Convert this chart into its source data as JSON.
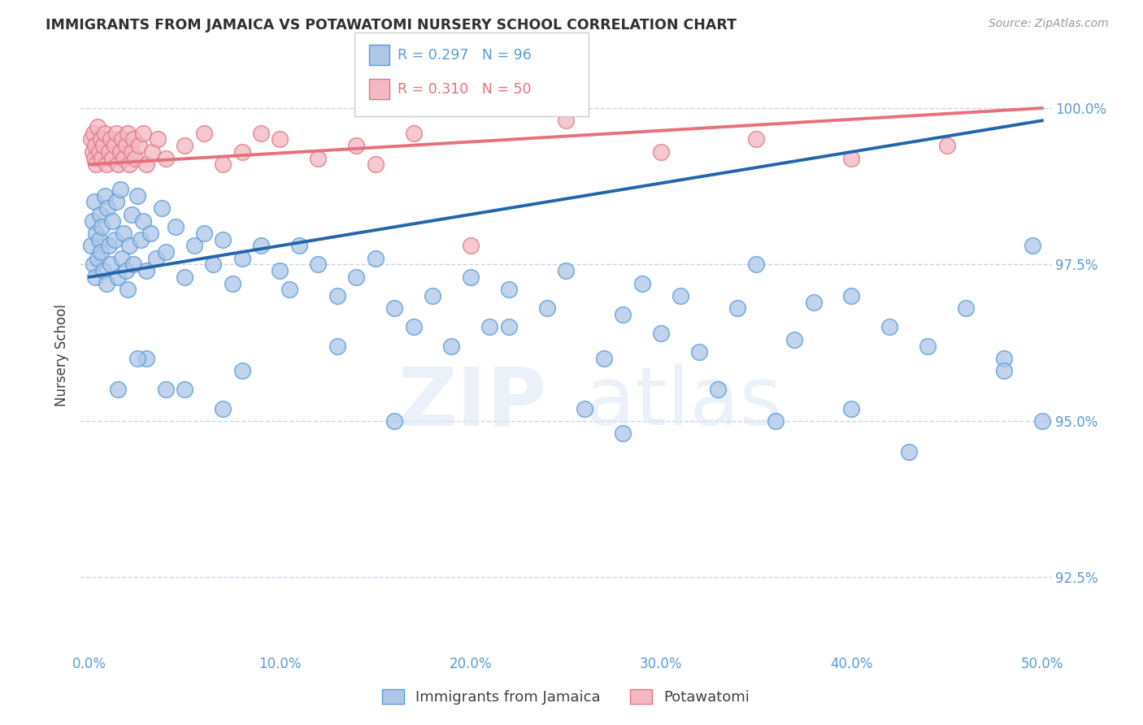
{
  "title": "IMMIGRANTS FROM JAMAICA VS POTAWATOMI NURSERY SCHOOL CORRELATION CHART",
  "source": "Source: ZipAtlas.com",
  "ylabel": "Nursery School",
  "xlim": [
    -0.5,
    50.5
  ],
  "ylim": [
    91.3,
    100.8
  ],
  "yticks": [
    92.5,
    95.0,
    97.5,
    100.0
  ],
  "xticks": [
    0.0,
    10.0,
    20.0,
    30.0,
    40.0,
    50.0
  ],
  "xticklabels": [
    "0.0%",
    "10.0%",
    "20.0%",
    "30.0%",
    "40.0%",
    "50.0%"
  ],
  "yticklabels": [
    "92.5%",
    "95.0%",
    "97.5%",
    "100.0%"
  ],
  "blue_R": 0.297,
  "blue_N": 96,
  "pink_R": 0.31,
  "pink_N": 50,
  "blue_color": "#aec6e8",
  "pink_color": "#f4b8c4",
  "blue_edge_color": "#5b9bd5",
  "pink_edge_color": "#e07880",
  "blue_line_color": "#2166ac",
  "pink_line_color": "#e8707a",
  "blue_scatter_x": [
    0.1,
    0.15,
    0.2,
    0.25,
    0.3,
    0.35,
    0.4,
    0.5,
    0.55,
    0.6,
    0.65,
    0.7,
    0.8,
    0.9,
    0.95,
    1.0,
    1.1,
    1.2,
    1.3,
    1.4,
    1.5,
    1.6,
    1.7,
    1.8,
    1.9,
    2.0,
    2.1,
    2.2,
    2.3,
    2.5,
    2.7,
    2.8,
    3.0,
    3.2,
    3.5,
    3.8,
    4.0,
    4.5,
    5.0,
    5.5,
    6.0,
    6.5,
    7.0,
    7.5,
    8.0,
    9.0,
    10.0,
    10.5,
    11.0,
    12.0,
    13.0,
    14.0,
    15.0,
    16.0,
    17.0,
    18.0,
    19.0,
    20.0,
    21.0,
    22.0,
    24.0,
    25.0,
    27.0,
    28.0,
    29.0,
    30.0,
    31.0,
    32.0,
    34.0,
    35.0,
    37.0,
    38.0,
    40.0,
    42.0,
    44.0,
    46.0,
    48.0,
    49.5
  ],
  "blue_scatter_y": [
    97.8,
    98.2,
    97.5,
    98.5,
    97.3,
    98.0,
    97.6,
    97.9,
    98.3,
    97.7,
    98.1,
    97.4,
    98.6,
    97.2,
    98.4,
    97.8,
    97.5,
    98.2,
    97.9,
    98.5,
    97.3,
    98.7,
    97.6,
    98.0,
    97.4,
    97.1,
    97.8,
    98.3,
    97.5,
    98.6,
    97.9,
    98.2,
    97.4,
    98.0,
    97.6,
    98.4,
    97.7,
    98.1,
    97.3,
    97.8,
    98.0,
    97.5,
    97.9,
    97.2,
    97.6,
    97.8,
    97.4,
    97.1,
    97.8,
    97.5,
    97.0,
    97.3,
    97.6,
    96.8,
    96.5,
    97.0,
    96.2,
    97.3,
    96.5,
    97.1,
    96.8,
    97.4,
    96.0,
    96.7,
    97.2,
    96.4,
    97.0,
    96.1,
    96.8,
    97.5,
    96.3,
    96.9,
    97.0,
    96.5,
    96.2,
    96.8,
    96.0,
    97.8
  ],
  "blue_scatter_x_low": [
    3.0,
    5.0,
    8.0,
    13.0,
    16.0,
    22.0,
    26.0,
    28.0,
    33.0,
    36.0,
    40.0,
    43.0,
    48.0,
    50.0,
    1.5,
    2.5,
    4.0,
    7.0
  ],
  "blue_scatter_y_low": [
    96.0,
    95.5,
    95.8,
    96.2,
    95.0,
    96.5,
    95.2,
    94.8,
    95.5,
    95.0,
    95.2,
    94.5,
    95.8,
    95.0,
    95.5,
    96.0,
    95.5,
    95.2
  ],
  "pink_scatter_x": [
    0.1,
    0.15,
    0.2,
    0.25,
    0.3,
    0.35,
    0.4,
    0.5,
    0.6,
    0.65,
    0.7,
    0.8,
    0.9,
    1.0,
    1.1,
    1.2,
    1.3,
    1.4,
    1.5,
    1.6,
    1.7,
    1.8,
    1.9,
    2.0,
    2.1,
    2.2,
    2.3,
    2.4,
    2.6,
    2.8,
    3.0,
    3.3,
    3.6,
    4.0,
    5.0,
    6.0,
    7.0,
    8.0,
    10.0,
    12.0,
    14.0,
    17.0,
    20.0,
    25.0,
    30.0,
    35.0,
    40.0,
    45.0,
    9.0,
    15.0
  ],
  "pink_scatter_y": [
    99.5,
    99.3,
    99.6,
    99.2,
    99.4,
    99.1,
    99.7,
    99.3,
    99.5,
    99.2,
    99.4,
    99.6,
    99.1,
    99.3,
    99.5,
    99.2,
    99.4,
    99.6,
    99.1,
    99.3,
    99.5,
    99.2,
    99.4,
    99.6,
    99.1,
    99.3,
    99.5,
    99.2,
    99.4,
    99.6,
    99.1,
    99.3,
    99.5,
    99.2,
    99.4,
    99.6,
    99.1,
    99.3,
    99.5,
    99.2,
    99.4,
    99.6,
    97.8,
    99.8,
    99.3,
    99.5,
    99.2,
    99.4,
    99.6,
    99.1
  ],
  "blue_trend_x": [
    0.0,
    50.0
  ],
  "blue_trend_y": [
    97.3,
    99.8
  ],
  "pink_trend_x": [
    0.0,
    50.0
  ],
  "pink_trend_y": [
    99.1,
    100.0
  ],
  "legend_label_blue": "Immigrants from Jamaica",
  "legend_label_pink": "Potawatomi",
  "watermark_zip": "ZIP",
  "watermark_atlas": "atlas",
  "axis_color": "#5b9bd5",
  "grid_color": "#c8d4e8",
  "title_color": "#303030",
  "tick_color": "#5b9bd5"
}
